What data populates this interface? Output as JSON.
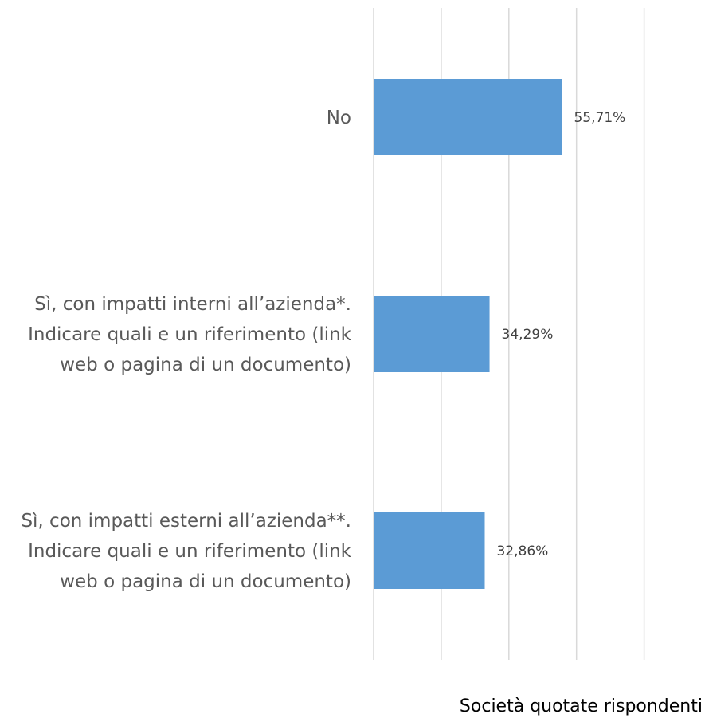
{
  "chart_data": {
    "type": "bar",
    "orientation": "horizontal",
    "categories": [
      "No",
      "Sì, con impatti interni all’azienda*. Indicare quali e un riferimento (link web o pagina di un documento)",
      "Sì, con impatti esterni all’azienda**. Indicare quali e un riferimento (link web o pagina di un documento)"
    ],
    "category_lines": [
      [
        "No"
      ],
      [
        "Sì, con impatti interni all’azienda*.",
        "Indicare quali e un riferimento (link",
        "web o pagina di un documento)"
      ],
      [
        "Sì, con impatti esterni all’azienda**.",
        "Indicare quali e un riferimento (link",
        "web o pagina di un documento)"
      ]
    ],
    "series": [
      {
        "name": "Società quotate rispondenti",
        "values": [
          55.71,
          34.29,
          32.86
        ],
        "labels": [
          "55,71%",
          "34,29%",
          "32,86%"
        ],
        "color": "#5b9bd5"
      }
    ],
    "xlim": [
      0,
      80
    ],
    "grid": true,
    "legend_position": "bottom-right"
  }
}
